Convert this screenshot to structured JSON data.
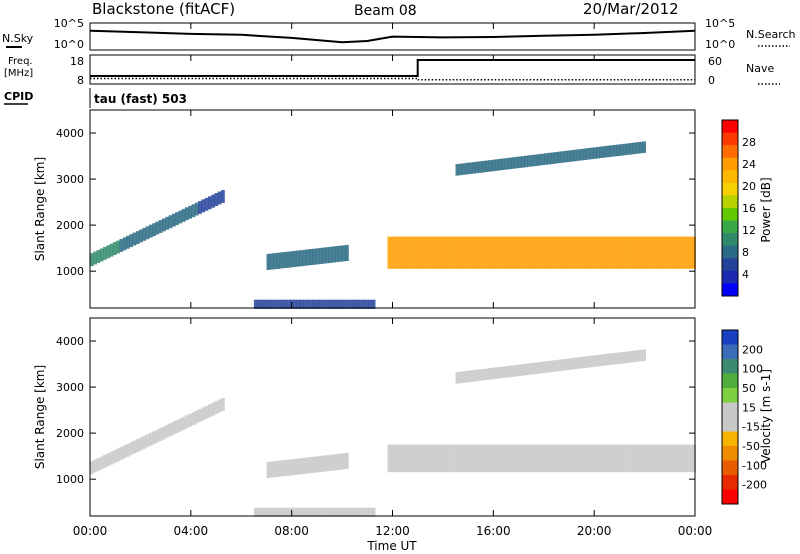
{
  "header": {
    "station": "Blackstone (fitACF)",
    "beam": "Beam 08",
    "date": "20/Mar/2012"
  },
  "noise_panel": {
    "left_label": "N.Sky",
    "right_label": "N.Search",
    "ticks_left": [
      "10^5",
      "10^0"
    ],
    "ticks_right": [
      "10^5",
      "10^0"
    ]
  },
  "freq_panel": {
    "left_label_1": "Freq.",
    "left_label_2": "[MHz]",
    "right_label": "Nave",
    "ticks_left": [
      "18",
      "8"
    ],
    "ticks_right": [
      "60",
      "0"
    ]
  },
  "cpid": {
    "label": "CPID",
    "value": "tau (fast) 503"
  },
  "time_axis": {
    "title": "Time UT",
    "ticks": [
      "00:00",
      "04:00",
      "08:00",
      "12:00",
      "16:00",
      "20:00",
      "00:00"
    ]
  },
  "chart_data": [
    {
      "type": "line",
      "title": "N.Sky / N.Search",
      "x_range_hours": [
        0,
        24
      ],
      "series": [
        {
          "name": "N.Sky",
          "style": "solid",
          "x": [
            0,
            2,
            4,
            6,
            8,
            10,
            11,
            12,
            14,
            16,
            18,
            20,
            22,
            24
          ],
          "y_exp": [
            3.9,
            3.6,
            3.2,
            3.0,
            2.3,
            1.3,
            1.6,
            2.6,
            2.4,
            2.5,
            2.8,
            3.0,
            3.4,
            3.9
          ]
        },
        {
          "name": "N.Search",
          "style": "dotted",
          "x": [
            0,
            24
          ],
          "y_exp": [
            0,
            0
          ]
        }
      ]
    },
    {
      "type": "line",
      "title": "Freq. [MHz] / Nave",
      "x_range_hours": [
        0,
        24
      ],
      "series": [
        {
          "name": "Freq. [MHz]",
          "style": "solid",
          "x": [
            0,
            13,
            13,
            24
          ],
          "y": [
            10.6,
            10.6,
            16.5,
            16.5
          ],
          "ylim": [
            8,
            18
          ]
        },
        {
          "name": "Nave",
          "style": "dotted",
          "x": [
            0,
            13,
            13,
            24
          ],
          "y": [
            10,
            10,
            7,
            7
          ],
          "ylim": [
            0,
            60
          ]
        }
      ]
    },
    {
      "type": "heatmap",
      "quantity": "Power",
      "title": "",
      "xlabel": "Time UT",
      "ylabel": "Slant Range [km]",
      "x_range_hours": [
        0,
        24
      ],
      "ylim": [
        200,
        4500
      ],
      "yticks": [
        1000,
        2000,
        3000,
        4000
      ],
      "colorbar": {
        "label": "Power [dB]",
        "ticks": [
          "28",
          "24",
          "20",
          "16",
          "12",
          "8",
          "4"
        ],
        "colors": [
          "#ff0000",
          "#ff3a00",
          "#ff6d00",
          "#ff9c00",
          "#ffb800",
          "#f6d000",
          "#b8d200",
          "#63c800",
          "#38a848",
          "#2f8a6a",
          "#2a6a84",
          "#23429a",
          "#1b2ab0",
          "#0000ff"
        ]
      },
      "regions": [
        {
          "feature": "rising echo band",
          "t_start": 0.0,
          "t_end": 5.3,
          "r_start": 1250,
          "r_end": 2650,
          "width_km": 280,
          "power": [
            10,
            6
          ]
        },
        {
          "feature": "mid-day patches",
          "t_start": 7.0,
          "t_end": 10.2,
          "r_start": 1200,
          "r_end": 1400,
          "width_km": 350,
          "power": [
            9,
            9
          ]
        },
        {
          "feature": "near-range echoes",
          "t_start": 6.5,
          "t_end": 11.3,
          "r_start": 280,
          "r_end": 280,
          "width_km": 200,
          "power": [
            5,
            5
          ]
        },
        {
          "feature": "strong echo band",
          "t_start": 11.8,
          "t_end": 24.0,
          "r_start": 1400,
          "r_end": 1400,
          "width_km": 700,
          "power": [
            24,
            24
          ]
        },
        {
          "feature": "far-range scatter",
          "t_start": 14.5,
          "t_end": 22.0,
          "r_start": 3200,
          "r_end": 3700,
          "width_km": 250,
          "power": [
            7,
            7
          ]
        }
      ]
    },
    {
      "type": "heatmap",
      "quantity": "Velocity",
      "title": "",
      "xlabel": "Time UT",
      "ylabel": "Slant Range [km]",
      "x_range_hours": [
        0,
        24
      ],
      "ylim": [
        200,
        4500
      ],
      "yticks": [
        1000,
        2000,
        3000,
        4000
      ],
      "colorbar": {
        "label": "Velocity [m s-1]",
        "ticks": [
          "200",
          "100",
          "50",
          "15",
          "-15",
          "-50",
          "-100",
          "-200"
        ],
        "colors": [
          "#1a3fc0",
          "#3a6db5",
          "#3c8a72",
          "#4fae3e",
          "#7fd040",
          "#c8c8c8",
          "#c8c8c8",
          "#f6b400",
          "#f08c00",
          "#e85d00",
          "#e82a00",
          "#ff0000"
        ]
      },
      "regions": [
        {
          "feature": "rising echo band",
          "t_start": 0.0,
          "t_end": 5.3,
          "r_start": 1250,
          "r_end": 2650,
          "width_km": 280,
          "velocity": [
            -5,
            0
          ]
        },
        {
          "feature": "mid-day patches",
          "t_start": 7.0,
          "t_end": 10.2,
          "r_start": 1200,
          "r_end": 1400,
          "width_km": 350,
          "velocity": [
            -40,
            -40
          ]
        },
        {
          "feature": "near-range echoes",
          "t_start": 6.5,
          "t_end": 11.3,
          "r_start": 280,
          "r_end": 280,
          "width_km": 200,
          "velocity": [
            -40,
            -40
          ]
        },
        {
          "feature": "strong echo band",
          "t_start": 11.8,
          "t_end": 24.0,
          "r_start": 1450,
          "r_end": 1450,
          "width_km": 600,
          "velocity": [
            0,
            0
          ]
        },
        {
          "feature": "far-range scatter",
          "t_start": 14.5,
          "t_end": 22.0,
          "r_start": 3200,
          "r_end": 3700,
          "width_km": 250,
          "velocity": [
            5,
            5
          ]
        }
      ]
    }
  ]
}
